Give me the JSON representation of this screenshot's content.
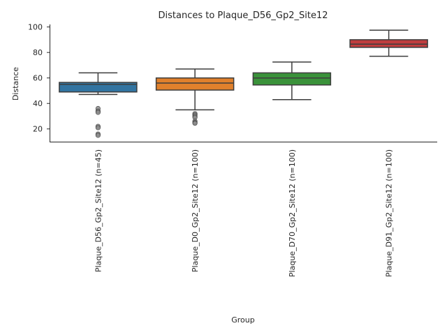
{
  "chart_data": {
    "type": "box",
    "title": "Distances to Plaque_D56_Gp2_Site12",
    "xlabel": "Group",
    "ylabel": "Distance",
    "ylim": [
      10,
      102
    ],
    "yticks": [
      20,
      40,
      60,
      80,
      100
    ],
    "grid": false,
    "categories": [
      "Plaque_D56_Gp2_Site12 (n=45)",
      "Plaque_D0_Gp2_Site12 (n=100)",
      "Plaque_D70_Gp2_Site12 (n=100)",
      "Plaque_D91_Gp2_Site12 (n=100)"
    ],
    "boxes": [
      {
        "color": "#3274a1",
        "whisker_low": 47,
        "q1": 49,
        "median": 55,
        "q3": 56.5,
        "whisker_high": 64,
        "outliers": [
          36,
          34,
          33,
          22,
          21,
          16,
          15
        ]
      },
      {
        "color": "#e1812c",
        "whisker_low": 35,
        "q1": 50.5,
        "median": 56,
        "q3": 60,
        "whisker_high": 67,
        "outliers": [
          32,
          31,
          30,
          29,
          26,
          25,
          24.5
        ]
      },
      {
        "color": "#3a923a",
        "whisker_low": 43,
        "q1": 54.5,
        "median": 60,
        "q3": 64,
        "whisker_high": 72.5,
        "outliers": []
      },
      {
        "color": "#c03d3e",
        "whisker_low": 77,
        "q1": 84,
        "median": 86.5,
        "q3": 90,
        "whisker_high": 97.5,
        "outliers": []
      }
    ]
  }
}
